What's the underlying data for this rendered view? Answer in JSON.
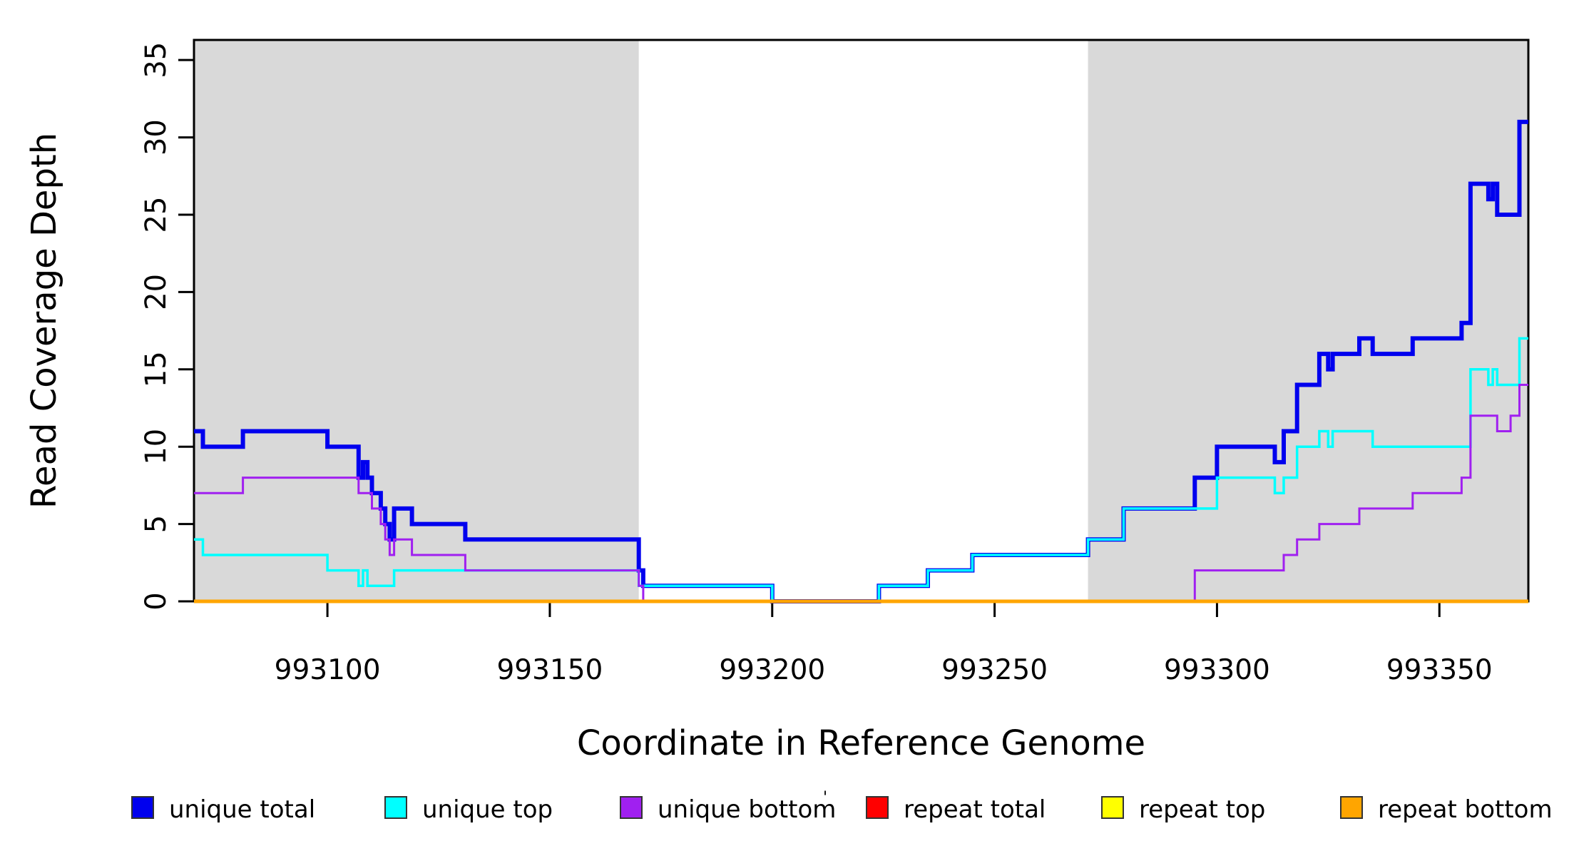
{
  "chart_data": {
    "type": "line",
    "subtype": "step-post",
    "title": "",
    "xlabel": "Coordinate in Reference Genome",
    "ylabel": "Read Coverage Depth",
    "xlim": [
      993070,
      993370
    ],
    "ylim": [
      0,
      36.3
    ],
    "x_ticks": [
      993100,
      993150,
      993200,
      993250,
      993300,
      993350
    ],
    "y_ticks": [
      0,
      5,
      10,
      15,
      20,
      25,
      30,
      35
    ],
    "grid": false,
    "box": true,
    "background": "#ffffff",
    "shaded_regions": [
      {
        "name": "repeat-region-left",
        "x0": 993070,
        "x1": 993170,
        "color": "#d9d9d9"
      },
      {
        "name": "repeat-region-right",
        "x0": 993271,
        "x1": 993370,
        "color": "#d9d9d9"
      }
    ],
    "series": [
      {
        "name": "unique total",
        "color": "#0000ee",
        "width": 6,
        "points": [
          [
            993070,
            11
          ],
          [
            993072,
            10
          ],
          [
            993081,
            11
          ],
          [
            993100,
            10
          ],
          [
            993107,
            8
          ],
          [
            993108,
            9
          ],
          [
            993109,
            8
          ],
          [
            993110,
            7
          ],
          [
            993112,
            6
          ],
          [
            993113,
            5
          ],
          [
            993114,
            4
          ],
          [
            993115,
            6
          ],
          [
            993119,
            5
          ],
          [
            993131,
            4
          ],
          [
            993170,
            2
          ],
          [
            993171,
            1
          ],
          [
            993200,
            0
          ],
          [
            993224,
            1
          ],
          [
            993235,
            2
          ],
          [
            993245,
            3
          ],
          [
            993271,
            4
          ],
          [
            993279,
            6
          ],
          [
            993295,
            8
          ],
          [
            993300,
            10
          ],
          [
            993313,
            9
          ],
          [
            993315,
            11
          ],
          [
            993318,
            14
          ],
          [
            993323,
            16
          ],
          [
            993325,
            15
          ],
          [
            993326,
            16
          ],
          [
            993332,
            17
          ],
          [
            993335,
            16
          ],
          [
            993344,
            17
          ],
          [
            993355,
            18
          ],
          [
            993357,
            27
          ],
          [
            993361,
            26
          ],
          [
            993362,
            27
          ],
          [
            993363,
            25
          ],
          [
            993368,
            31
          ]
        ]
      },
      {
        "name": "unique top",
        "color": "#00ffff",
        "width": 3.5,
        "points": [
          [
            993070,
            4
          ],
          [
            993072,
            3
          ],
          [
            993100,
            2
          ],
          [
            993107,
            1
          ],
          [
            993108,
            2
          ],
          [
            993109,
            1
          ],
          [
            993115,
            2
          ],
          [
            993170,
            1
          ],
          [
            993200,
            0
          ],
          [
            993224,
            1
          ],
          [
            993235,
            2
          ],
          [
            993245,
            3
          ],
          [
            993271,
            4
          ],
          [
            993279,
            6
          ],
          [
            993300,
            8
          ],
          [
            993313,
            7
          ],
          [
            993315,
            8
          ],
          [
            993318,
            10
          ],
          [
            993323,
            11
          ],
          [
            993325,
            10
          ],
          [
            993326,
            11
          ],
          [
            993335,
            10
          ],
          [
            993357,
            15
          ],
          [
            993361,
            14
          ],
          [
            993362,
            15
          ],
          [
            993363,
            14
          ],
          [
            993368,
            17
          ]
        ]
      },
      {
        "name": "unique bottom",
        "color": "#a020f0",
        "width": 3,
        "points": [
          [
            993070,
            7
          ],
          [
            993081,
            8
          ],
          [
            993107,
            7
          ],
          [
            993110,
            6
          ],
          [
            993112,
            5
          ],
          [
            993113,
            4
          ],
          [
            993114,
            3
          ],
          [
            993115,
            4
          ],
          [
            993119,
            3
          ],
          [
            993131,
            2
          ],
          [
            993170,
            1
          ],
          [
            993171,
            0
          ],
          [
            993295,
            2
          ],
          [
            993315,
            3
          ],
          [
            993318,
            4
          ],
          [
            993323,
            5
          ],
          [
            993332,
            6
          ],
          [
            993344,
            7
          ],
          [
            993355,
            8
          ],
          [
            993357,
            12
          ],
          [
            993363,
            11
          ],
          [
            993366,
            12
          ],
          [
            993368,
            14
          ]
        ]
      },
      {
        "name": "repeat total",
        "color": "#ff0000",
        "width": 3,
        "points": [
          [
            993070,
            0
          ]
        ]
      },
      {
        "name": "repeat top",
        "color": "#ffff00",
        "width": 3,
        "points": [
          [
            993070,
            0
          ]
        ]
      },
      {
        "name": "repeat bottom",
        "color": "#ffa500",
        "width": 5,
        "points": [
          [
            993070,
            0
          ]
        ]
      }
    ],
    "legend": {
      "position": "bottom",
      "items": [
        {
          "label": "unique total",
          "color": "#0000ee"
        },
        {
          "label": "unique top",
          "color": "#00ffff"
        },
        {
          "label": "unique bottom",
          "color": "#a020f0"
        },
        {
          "label": "repeat total",
          "color": "#ff0000"
        },
        {
          "label": "repeat top",
          "color": "#ffff00"
        },
        {
          "label": "repeat bottom",
          "color": "#ffa500"
        }
      ],
      "stray_mark": "'"
    }
  },
  "layout_colors": {
    "axis": "#000000",
    "shade": "#d9d9d9",
    "background": "#ffffff"
  }
}
